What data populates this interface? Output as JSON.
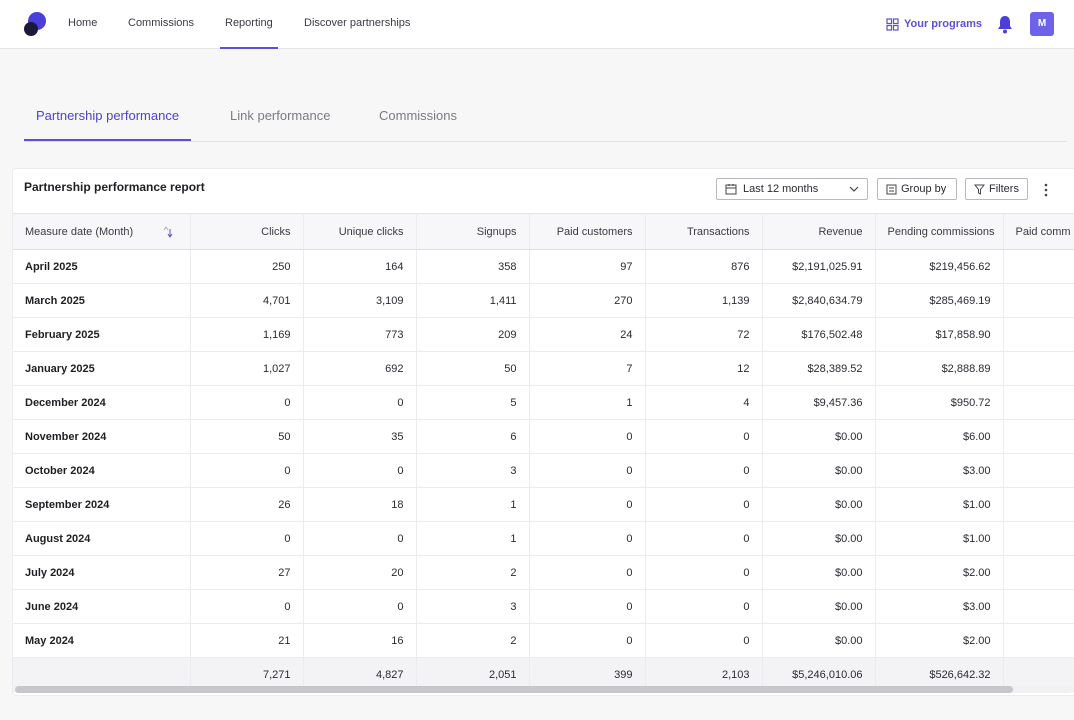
{
  "nav": {
    "items": [
      {
        "label": "Home"
      },
      {
        "label": "Commissions"
      },
      {
        "label": "Reporting"
      },
      {
        "label": "Discover partnerships"
      }
    ],
    "programs_label": "Your programs",
    "avatar_initial": "M"
  },
  "tabs": [
    {
      "label": "Partnership performance"
    },
    {
      "label": "Link performance"
    },
    {
      "label": "Commissions"
    }
  ],
  "report": {
    "title": "Partnership performance report",
    "date_range": "Last 12 months",
    "group_by_label": "Group by",
    "filters_label": "Filters",
    "columns": [
      "Measure date (Month)",
      "Clicks",
      "Unique clicks",
      "Signups",
      "Paid customers",
      "Transactions",
      "Revenue",
      "Pending commissions",
      "Paid comm"
    ],
    "rows": [
      [
        "April 2025",
        "250",
        "164",
        "358",
        "97",
        "876",
        "$2,191,025.91",
        "$219,456.62",
        ""
      ],
      [
        "March 2025",
        "4,701",
        "3,109",
        "1,411",
        "270",
        "1,139",
        "$2,840,634.79",
        "$285,469.19",
        ""
      ],
      [
        "February 2025",
        "1,169",
        "773",
        "209",
        "24",
        "72",
        "$176,502.48",
        "$17,858.90",
        ""
      ],
      [
        "January 2025",
        "1,027",
        "692",
        "50",
        "7",
        "12",
        "$28,389.52",
        "$2,888.89",
        ""
      ],
      [
        "December 2024",
        "0",
        "0",
        "5",
        "1",
        "4",
        "$9,457.36",
        "$950.72",
        ""
      ],
      [
        "November 2024",
        "50",
        "35",
        "6",
        "0",
        "0",
        "$0.00",
        "$6.00",
        ""
      ],
      [
        "October 2024",
        "0",
        "0",
        "3",
        "0",
        "0",
        "$0.00",
        "$3.00",
        ""
      ],
      [
        "September 2024",
        "26",
        "18",
        "1",
        "0",
        "0",
        "$0.00",
        "$1.00",
        ""
      ],
      [
        "August 2024",
        "0",
        "0",
        "1",
        "0",
        "0",
        "$0.00",
        "$1.00",
        ""
      ],
      [
        "July 2024",
        "27",
        "20",
        "2",
        "0",
        "0",
        "$0.00",
        "$2.00",
        ""
      ],
      [
        "June 2024",
        "0",
        "0",
        "3",
        "0",
        "0",
        "$0.00",
        "$3.00",
        ""
      ],
      [
        "May 2024",
        "21",
        "16",
        "2",
        "0",
        "0",
        "$0.00",
        "$2.00",
        ""
      ]
    ],
    "totals": [
      "",
      "7,271",
      "4,827",
      "2,051",
      "399",
      "2,103",
      "$5,246,010.06",
      "$526,642.32",
      ""
    ]
  },
  "colors": {
    "accent": "#5b4fd6",
    "avatar": "#6d63e8",
    "logo": "#3b32c8"
  }
}
